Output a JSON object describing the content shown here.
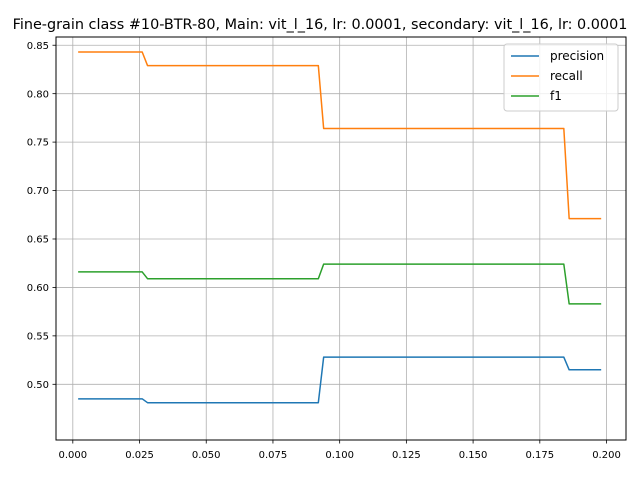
{
  "chart_data": {
    "type": "line",
    "title": "Fine-grain class #10-BTR-80, Main: vit_l_16, lr: 0.0001, secondary: vit_l_16, lr: 0.0001",
    "xlabel": "",
    "ylabel": "",
    "xlim": [
      -0.0063,
      0.2073
    ],
    "ylim": [
      0.4425,
      0.8585
    ],
    "grid": true,
    "legend_position": "top-right",
    "x_ticks": [
      0.0,
      0.025,
      0.05,
      0.075,
      0.1,
      0.125,
      0.15,
      0.175,
      0.2
    ],
    "x_tick_labels": [
      "0.000",
      "0.025",
      "0.050",
      "0.075",
      "0.100",
      "0.125",
      "0.150",
      "0.175",
      "0.200"
    ],
    "y_ticks": [
      0.5,
      0.55,
      0.6,
      0.65,
      0.7,
      0.75,
      0.8,
      0.85
    ],
    "y_tick_labels": [
      "0.50",
      "0.55",
      "0.60",
      "0.65",
      "0.70",
      "0.75",
      "0.80",
      "0.85"
    ],
    "x": [
      0.002,
      0.026,
      0.028,
      0.092,
      0.094,
      0.184,
      0.186,
      0.198
    ],
    "series": [
      {
        "name": "precision",
        "color": "#1f77b4",
        "values": [
          0.485,
          0.485,
          0.481,
          0.481,
          0.528,
          0.528,
          0.515,
          0.515
        ]
      },
      {
        "name": "recall",
        "color": "#ff7f0e",
        "values": [
          0.843,
          0.843,
          0.829,
          0.829,
          0.764,
          0.764,
          0.671,
          0.671
        ]
      },
      {
        "name": "f1",
        "color": "#2ca02c",
        "values": [
          0.616,
          0.616,
          0.609,
          0.609,
          0.624,
          0.624,
          0.583,
          0.583
        ]
      }
    ]
  }
}
